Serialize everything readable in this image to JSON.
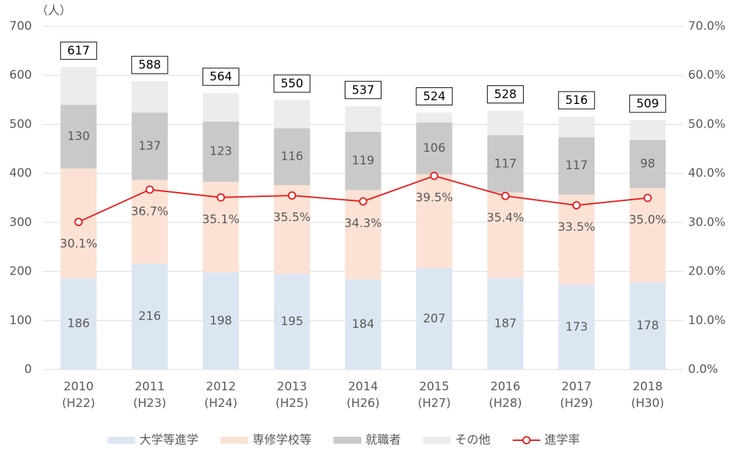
{
  "chart_data": {
    "type": "bar",
    "stacked": true,
    "y_label": "（人）",
    "categories": [
      "2010",
      "2011",
      "2012",
      "2013",
      "2014",
      "2015",
      "2016",
      "2017",
      "2018"
    ],
    "category_sublabels": [
      "(H22)",
      "(H23)",
      "(H24)",
      "(H25)",
      "(H26)",
      "(H27)",
      "(H28)",
      "(H29)",
      "(H30)"
    ],
    "series": [
      {
        "name": "大学等進学",
        "color": "#dce6f2",
        "show_labels": true,
        "values": [
          186,
          216,
          198,
          195,
          184,
          207,
          187,
          173,
          178
        ]
      },
      {
        "name": "専修学校等",
        "color": "#fbe2d5",
        "show_labels": false,
        "values": [
          224,
          171,
          185,
          181,
          182,
          191,
          174,
          184,
          192
        ]
      },
      {
        "name": "就職者",
        "color": "#c9c9c9",
        "show_labels": true,
        "values": [
          130,
          137,
          123,
          116,
          119,
          106,
          117,
          117,
          98
        ]
      },
      {
        "name": "その他",
        "color": "#ececec",
        "show_labels": false,
        "values": [
          77,
          64,
          58,
          58,
          52,
          20,
          50,
          42,
          41
        ]
      },
      {
        "name": "進学率",
        "type": "line",
        "axis": "y2",
        "color": "#e8201f",
        "show_labels": true,
        "values": [
          30.1,
          36.7,
          35.1,
          35.5,
          34.3,
          39.5,
          35.4,
          33.5,
          35.0
        ],
        "value_labels": [
          "30.1%",
          "36.7%",
          "35.1%",
          "35.5%",
          "34.3%",
          "39.5%",
          "35.4%",
          "33.5%",
          "35.0%"
        ]
      }
    ],
    "totals": [
      617,
      588,
      564,
      550,
      537,
      524,
      528,
      516,
      509
    ],
    "ylim": [
      0,
      700
    ],
    "yticks": [
      0,
      100,
      200,
      300,
      400,
      500,
      600,
      700
    ],
    "y2lim": [
      0,
      70
    ],
    "y2ticks": [
      {
        "value": 0,
        "label": "0.0%"
      },
      {
        "value": 10,
        "label": "10.0%"
      },
      {
        "value": 20,
        "label": "20.0%"
      },
      {
        "value": 30,
        "label": "30.0%"
      },
      {
        "value": 40,
        "label": "40.0%"
      },
      {
        "value": 50,
        "label": "50.0%"
      },
      {
        "value": 60,
        "label": "60.0%"
      },
      {
        "value": 70,
        "label": "70.0%"
      }
    ],
    "grid": true,
    "legend": "bottom"
  }
}
